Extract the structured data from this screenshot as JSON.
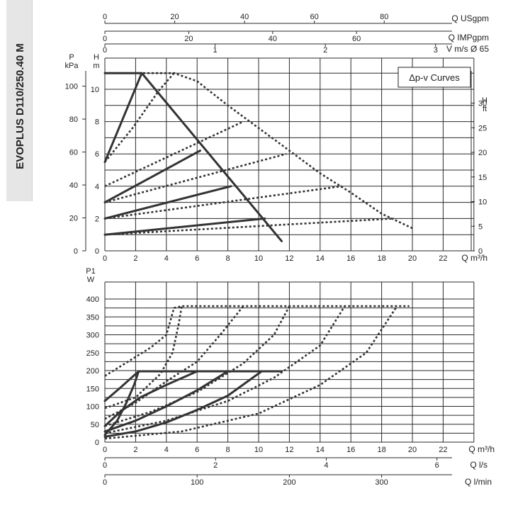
{
  "product_title": "EVOPLUS D110/250.40 M",
  "legend_box_label": "Δp-v Curves",
  "colors": {
    "curve": "#333333",
    "grid": "#2a2a2a",
    "sidebar": "#e6e6e6"
  },
  "top_chart": {
    "secondary_axes": [
      {
        "unit_label": "Q USgpm",
        "ticks": [
          "0",
          "20",
          "40",
          "60",
          "80"
        ]
      },
      {
        "unit_label": "Q IMPgpm",
        "ticks": [
          "0",
          "20",
          "40",
          "60"
        ]
      },
      {
        "unit_label": "V m/s Ø 65",
        "ticks": [
          "0",
          "1",
          "2",
          "3"
        ]
      }
    ],
    "left_outer_label": [
      "P",
      "kPa"
    ],
    "left_inner_label": [
      "H",
      "m"
    ],
    "right_label": [
      "H",
      "ft"
    ],
    "kpa_ticks": [
      "0",
      "20",
      "40",
      "60",
      "80",
      "100"
    ],
    "m_ticks": [
      "0",
      "2",
      "4",
      "6",
      "8",
      "10"
    ],
    "ft_ticks": [
      "0",
      "5",
      "10",
      "15",
      "20",
      "25",
      "30"
    ],
    "x_ticks": [
      "0",
      "2",
      "4",
      "6",
      "8",
      "10",
      "12",
      "14",
      "16",
      "18",
      "20",
      "22"
    ],
    "x_unit_label": "Q m³/h"
  },
  "bottom_chart": {
    "y_label": [
      "P1",
      "W"
    ],
    "y_ticks": [
      "0",
      "50",
      "100",
      "150",
      "200",
      "250",
      "300",
      "350",
      "400"
    ],
    "x_ticks": [
      "0",
      "2",
      "4",
      "6",
      "8",
      "10",
      "12",
      "14",
      "16",
      "18",
      "20",
      "22"
    ],
    "x_unit_label": "Q m³/h",
    "secondary_axes": [
      {
        "unit_label": "Q l/s",
        "ticks": [
          "0",
          "2",
          "4",
          "6"
        ]
      },
      {
        "unit_label": "Q l/min",
        "ticks": [
          "0",
          "100",
          "200",
          "300"
        ]
      }
    ]
  },
  "chart_data": [
    {
      "type": "line",
      "title": "Δp-v Curves",
      "xlabel": "Q m³/h",
      "ylabel": "H m",
      "xlim": [
        0,
        24
      ],
      "ylim": [
        0,
        11.5
      ],
      "series": [
        {
          "style": "solid",
          "points": [
            [
              0,
              5.5
            ],
            [
              2.4,
              11
            ],
            [
              0,
              11
            ]
          ]
        },
        {
          "style": "solid",
          "points": [
            [
              2.4,
              11
            ],
            [
              11.5,
              0.6
            ]
          ]
        },
        {
          "style": "solid",
          "points": [
            [
              0,
              3
            ],
            [
              6.2,
              6.2
            ]
          ]
        },
        {
          "style": "solid",
          "points": [
            [
              0,
              2
            ],
            [
              8.2,
              4
            ]
          ]
        },
        {
          "style": "solid",
          "points": [
            [
              0,
              1
            ],
            [
              10.4,
              2
            ]
          ]
        },
        {
          "style": "dotted",
          "points": [
            [
              0,
              5.5
            ],
            [
              1.8,
              7.6
            ],
            [
              3.5,
              9.9
            ],
            [
              4.5,
              11
            ]
          ]
        },
        {
          "style": "dotted",
          "points": [
            [
              0,
              11
            ],
            [
              4.5,
              11
            ],
            [
              6,
              10.5
            ],
            [
              8,
              9
            ],
            [
              10,
              7.6
            ],
            [
              12,
              6.2
            ],
            [
              14,
              4.8
            ],
            [
              16,
              3.6
            ],
            [
              18,
              2.3
            ],
            [
              20,
              1.4
            ]
          ]
        },
        {
          "style": "dotted",
          "points": [
            [
              0,
              4
            ],
            [
              9,
              8
            ]
          ]
        },
        {
          "style": "dotted",
          "points": [
            [
              0,
              3
            ],
            [
              11.8,
              6
            ]
          ]
        },
        {
          "style": "dotted",
          "points": [
            [
              0,
              2
            ],
            [
              15.4,
              4
            ]
          ]
        },
        {
          "style": "dotted",
          "points": [
            [
              0,
              1
            ],
            [
              18.8,
              2
            ]
          ]
        }
      ]
    },
    {
      "type": "line",
      "xlabel": "Q m³/h",
      "ylabel": "P1 W",
      "xlim": [
        0,
        24
      ],
      "ylim": [
        0,
        420
      ],
      "series": [
        {
          "style": "solid",
          "points": [
            [
              0,
              115
            ],
            [
              1,
              152
            ],
            [
              2.2,
              198
            ],
            [
              11.5,
              198
            ]
          ]
        },
        {
          "style": "solid",
          "points": [
            [
              0,
              20
            ],
            [
              0.8,
              60
            ],
            [
              1.4,
              110
            ],
            [
              1.9,
              160
            ],
            [
              2.2,
              198
            ]
          ]
        },
        {
          "style": "solid",
          "points": [
            [
              0,
              45
            ],
            [
              1,
              85
            ],
            [
              2.3,
              125
            ],
            [
              4,
              160
            ],
            [
              6,
              198
            ]
          ]
        },
        {
          "style": "solid",
          "points": [
            [
              0,
              30
            ],
            [
              2,
              60
            ],
            [
              4,
              100
            ],
            [
              6,
              145
            ],
            [
              8,
              198
            ]
          ]
        },
        {
          "style": "solid",
          "points": [
            [
              0,
              15
            ],
            [
              2,
              30
            ],
            [
              4,
              55
            ],
            [
              6,
              90
            ],
            [
              8,
              130
            ],
            [
              10.2,
              198
            ]
          ]
        },
        {
          "style": "dotted",
          "points": [
            [
              0,
              185
            ],
            [
              1.5,
              225
            ],
            [
              3,
              265
            ],
            [
              4,
              300
            ],
            [
              4.5,
              375
            ],
            [
              5,
              380
            ],
            [
              19.8,
              380
            ]
          ]
        },
        {
          "style": "dotted",
          "points": [
            [
              0,
              95
            ],
            [
              2,
              125
            ],
            [
              3.6,
              190
            ],
            [
              4.4,
              250
            ],
            [
              4.8,
              330
            ],
            [
              5,
              380
            ]
          ]
        },
        {
          "style": "dotted",
          "points": [
            [
              0,
              65
            ],
            [
              2,
              110
            ],
            [
              4,
              170
            ],
            [
              6,
              225
            ],
            [
              7.5,
              300
            ],
            [
              9,
              380
            ]
          ]
        },
        {
          "style": "dotted",
          "points": [
            [
              0,
              45
            ],
            [
              3,
              85
            ],
            [
              6,
              140
            ],
            [
              9,
              220
            ],
            [
              11,
              300
            ],
            [
              12,
              380
            ]
          ]
        },
        {
          "style": "dotted",
          "points": [
            [
              0,
              25
            ],
            [
              4,
              60
            ],
            [
              8,
              115
            ],
            [
              11,
              180
            ],
            [
              14,
              270
            ],
            [
              15.6,
              380
            ]
          ]
        },
        {
          "style": "dotted",
          "points": [
            [
              0,
              10
            ],
            [
              5,
              30
            ],
            [
              10,
              80
            ],
            [
              14,
              160
            ],
            [
              17,
              250
            ],
            [
              19,
              380
            ]
          ]
        }
      ]
    }
  ]
}
